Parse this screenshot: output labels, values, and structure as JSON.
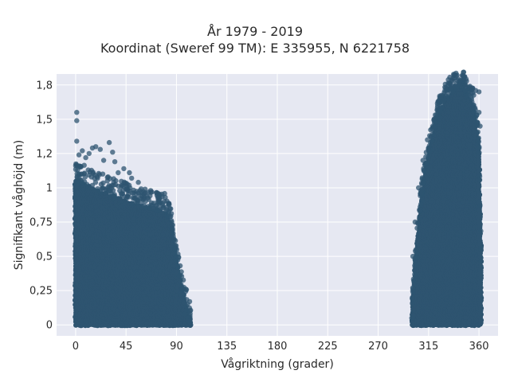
{
  "chart_data": {
    "type": "scatter",
    "title_lines": [
      "År 1979 - 2019",
      "Koordinat (Sweref 99 TM): E 335955, N 6221758"
    ],
    "xlabel": "Vågriktning (grader)",
    "ylabel": "Signifikant våghöjd (m)",
    "xlim": [
      -17,
      377
    ],
    "ylim": [
      -0.08,
      1.83
    ],
    "xticks": [
      0,
      45,
      90,
      135,
      180,
      225,
      270,
      315,
      360
    ],
    "xtick_labels": [
      "0",
      "45",
      "90",
      "135",
      "180",
      "225",
      "270",
      "315",
      "360"
    ],
    "yticks": [
      0,
      0.25,
      0.5,
      0.75,
      1,
      1.25,
      1.5,
      1.75
    ],
    "ytick_labels": [
      "0",
      "0,25",
      "0,5",
      "0,75",
      "1",
      "1,2",
      "1,5",
      "1,8"
    ],
    "grid": true,
    "marker_color": "#2e5470",
    "plot_bg": "#e6e8f2",
    "clusters": [
      {
        "x_range": [
          0,
          103
        ],
        "envelope": [
          [
            0,
            1.05
          ],
          [
            10,
            1.02
          ],
          [
            20,
            0.97
          ],
          [
            30,
            0.95
          ],
          [
            40,
            0.92
          ],
          [
            50,
            0.88
          ],
          [
            60,
            0.86
          ],
          [
            70,
            0.84
          ],
          [
            80,
            0.82
          ],
          [
            85,
            0.72
          ],
          [
            90,
            0.45
          ],
          [
            95,
            0.25
          ],
          [
            100,
            0.08
          ],
          [
            103,
            0.02
          ]
        ],
        "outliers": [
          [
            1,
            1.55
          ],
          [
            1,
            1.49
          ],
          [
            1,
            1.34
          ],
          [
            3,
            1.24
          ],
          [
            6,
            1.27
          ],
          [
            9,
            1.22
          ],
          [
            12,
            1.25
          ],
          [
            15,
            1.29
          ],
          [
            18,
            1.3
          ],
          [
            22,
            1.28
          ],
          [
            25,
            1.2
          ],
          [
            30,
            1.33
          ],
          [
            33,
            1.26
          ],
          [
            35,
            1.19
          ],
          [
            43,
            1.14
          ],
          [
            48,
            1.11
          ],
          [
            38,
            1.11
          ],
          [
            50,
            1.07
          ],
          [
            56,
            1.04
          ],
          [
            62,
            0.99
          ],
          [
            67,
            0.98
          ],
          [
            75,
            0.95
          ],
          [
            80,
            0.93
          ],
          [
            83,
            0.88
          ],
          [
            97,
            0.08
          ],
          [
            100,
            0.05
          ],
          [
            102,
            0.03
          ]
        ]
      },
      {
        "x_range": [
          300,
          362
        ],
        "envelope": [
          [
            300,
            0.03
          ],
          [
            302,
            0.3
          ],
          [
            305,
            0.6
          ],
          [
            308,
            0.85
          ],
          [
            312,
            1.1
          ],
          [
            317,
            1.3
          ],
          [
            320,
            1.4
          ],
          [
            325,
            1.55
          ],
          [
            330,
            1.62
          ],
          [
            335,
            1.68
          ],
          [
            340,
            1.73
          ],
          [
            345,
            1.72
          ],
          [
            350,
            1.66
          ],
          [
            355,
            1.58
          ],
          [
            358,
            1.4
          ],
          [
            360,
            1.25
          ],
          [
            361,
            0.8
          ],
          [
            362,
            0.4
          ]
        ],
        "outliers": [
          [
            338,
            1.8
          ],
          [
            343,
            1.78
          ],
          [
            334,
            1.76
          ],
          [
            348,
            1.75
          ],
          [
            352,
            1.74
          ],
          [
            357,
            1.71
          ],
          [
            360,
            1.7
          ],
          [
            328,
            1.63
          ],
          [
            322,
            1.53
          ],
          [
            318,
            1.43
          ],
          [
            316,
            1.38
          ],
          [
            314,
            1.35
          ],
          [
            310,
            1.2
          ],
          [
            306,
            1.0
          ],
          [
            303,
            0.75
          ],
          [
            301,
            0.5
          ],
          [
            300,
            0.05
          ],
          [
            360,
            1.55
          ],
          [
            361,
            1.45
          ],
          [
            359,
            1.32
          ]
        ]
      }
    ]
  }
}
